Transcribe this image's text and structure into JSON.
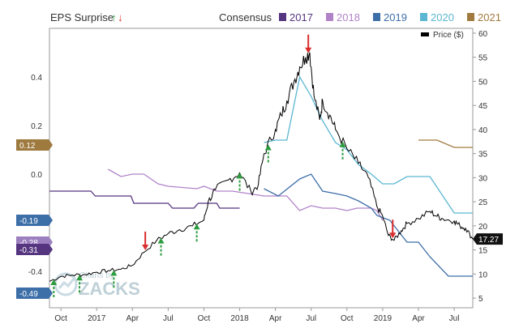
{
  "chart_data": {
    "type": "line",
    "header": {
      "eps_surprise_label": "EPS Surprise",
      "consensus_label": "Consensus",
      "price_label": "Price ($)",
      "up_arrow": "↑",
      "down_arrow": "↓"
    },
    "left_axis": {
      "min": -0.55,
      "max": 0.6,
      "ticks": [
        "0.4",
        "0.2",
        "0.0",
        "-0.2",
        "-0.4"
      ],
      "tick_values": [
        0.4,
        0.2,
        0.0,
        -0.2,
        -0.4
      ]
    },
    "right_axis": {
      "min": 3,
      "max": 61,
      "ticks": [
        "60",
        "55",
        "50",
        "45",
        "40",
        "35",
        "30",
        "25",
        "20",
        "15",
        "10",
        "5"
      ],
      "tick_values": [
        60,
        55,
        50,
        45,
        40,
        35,
        30,
        25,
        20,
        15,
        10,
        5
      ]
    },
    "x_axis": {
      "start": 2016.67,
      "end": 2019.63,
      "ticks": [
        {
          "label": "Oct",
          "t": 2016.75
        },
        {
          "label": "2017",
          "t": 2017.0
        },
        {
          "label": "Apr",
          "t": 2017.25
        },
        {
          "label": "Jul",
          "t": 2017.5
        },
        {
          "label": "Oct",
          "t": 2017.75
        },
        {
          "label": "2018",
          "t": 2018.0
        },
        {
          "label": "Apr",
          "t": 2018.25
        },
        {
          "label": "Jul",
          "t": 2018.5
        },
        {
          "label": "Oct",
          "t": 2018.75
        },
        {
          "label": "2019",
          "t": 2019.0
        },
        {
          "label": "Apr",
          "t": 2019.25
        },
        {
          "label": "Jul",
          "t": 2019.5
        }
      ]
    },
    "badges": [
      {
        "label": "0.12",
        "value": 0.12,
        "color": "#9e7a3f"
      },
      {
        "label": "-0.19",
        "value": -0.19,
        "color": "#3c6ea8"
      },
      {
        "label": "-0.28",
        "value": -0.28,
        "color": "#9c7fbf"
      },
      {
        "label": "-0.31",
        "value": -0.31,
        "color": "#55357f"
      },
      {
        "label": "-0.49",
        "value": -0.49,
        "color": "#3c6ea8"
      }
    ],
    "price_badge": {
      "label": "17.27",
      "value": 17.27
    },
    "legend": [
      {
        "name": "2017",
        "color": "#55357f"
      },
      {
        "name": "2018",
        "color": "#b083c9"
      },
      {
        "name": "2019",
        "color": "#3c6ea8"
      },
      {
        "name": "2020",
        "color": "#5ab6d2"
      },
      {
        "name": "2021",
        "color": "#a07a3e"
      }
    ],
    "series": [
      {
        "name": "2017",
        "color": "#55357f",
        "points": [
          [
            2016.67,
            -0.07
          ],
          [
            2016.96,
            -0.07
          ],
          [
            2016.99,
            -0.09
          ],
          [
            2017.24,
            -0.09
          ],
          [
            2017.26,
            -0.12
          ],
          [
            2017.5,
            -0.12
          ],
          [
            2017.53,
            -0.14
          ],
          [
            2017.68,
            -0.14
          ],
          [
            2017.71,
            -0.12
          ],
          [
            2017.84,
            -0.12
          ],
          [
            2017.86,
            -0.14
          ],
          [
            2018.0,
            -0.14
          ]
        ]
      },
      {
        "name": "2018",
        "color": "#b083c9",
        "points": [
          [
            2017.08,
            0.02
          ],
          [
            2017.17,
            -0.01
          ],
          [
            2017.25,
            0.0
          ],
          [
            2017.33,
            0.0
          ],
          [
            2017.43,
            -0.04
          ],
          [
            2017.5,
            -0.05
          ],
          [
            2017.7,
            -0.06
          ],
          [
            2017.75,
            -0.05
          ],
          [
            2017.84,
            -0.07
          ],
          [
            2017.95,
            -0.07
          ],
          [
            2018.17,
            -0.09
          ],
          [
            2018.33,
            -0.09
          ],
          [
            2018.42,
            -0.15
          ],
          [
            2018.5,
            -0.13
          ],
          [
            2018.58,
            -0.14
          ],
          [
            2018.67,
            -0.14
          ],
          [
            2018.75,
            -0.15
          ],
          [
            2018.82,
            -0.14
          ],
          [
            2018.92,
            -0.14
          ],
          [
            2018.96,
            -0.15
          ],
          [
            2019.0,
            -0.19
          ]
        ]
      },
      {
        "name": "2019",
        "color": "#3c6ea8",
        "points": [
          [
            2018.17,
            -0.06
          ],
          [
            2018.27,
            -0.09
          ],
          [
            2018.42,
            -0.02
          ],
          [
            2018.5,
            0.0
          ],
          [
            2018.58,
            -0.07
          ],
          [
            2018.67,
            -0.08
          ],
          [
            2018.75,
            -0.09
          ],
          [
            2018.83,
            -0.11
          ],
          [
            2018.92,
            -0.14
          ],
          [
            2018.96,
            -0.17
          ],
          [
            2019.05,
            -0.19
          ],
          [
            2019.17,
            -0.28
          ],
          [
            2019.25,
            -0.28
          ],
          [
            2019.33,
            -0.34
          ],
          [
            2019.46,
            -0.42
          ],
          [
            2019.63,
            -0.42
          ]
        ]
      },
      {
        "name": "2020",
        "color": "#5ab6d2",
        "points": [
          [
            2018.17,
            0.13
          ],
          [
            2018.25,
            0.14
          ],
          [
            2018.33,
            0.14
          ],
          [
            2018.42,
            0.4
          ],
          [
            2018.5,
            0.32
          ],
          [
            2018.58,
            0.22
          ],
          [
            2018.67,
            0.13
          ],
          [
            2018.75,
            0.1
          ],
          [
            2018.83,
            0.04
          ],
          [
            2018.92,
            0.0
          ],
          [
            2019.0,
            -0.04
          ],
          [
            2019.08,
            -0.04
          ],
          [
            2019.17,
            -0.01
          ],
          [
            2019.33,
            -0.01
          ],
          [
            2019.5,
            -0.16
          ],
          [
            2019.63,
            -0.16
          ]
        ]
      },
      {
        "name": "2021",
        "color": "#a07a3e",
        "points": [
          [
            2019.25,
            0.14
          ],
          [
            2019.38,
            0.14
          ],
          [
            2019.5,
            0.11
          ],
          [
            2019.63,
            0.11
          ]
        ]
      }
    ],
    "price": {
      "name": "Price ($)",
      "color": "#000000",
      "points": [
        [
          2016.67,
          8.5
        ],
        [
          2016.75,
          9.5
        ],
        [
          2016.83,
          9.8
        ],
        [
          2016.92,
          9.9
        ],
        [
          2017.0,
          10.4
        ],
        [
          2017.08,
          10.7
        ],
        [
          2017.17,
          11.0
        ],
        [
          2017.25,
          11.8
        ],
        [
          2017.33,
          14.5
        ],
        [
          2017.42,
          17.0
        ],
        [
          2017.5,
          18.4
        ],
        [
          2017.58,
          19.2
        ],
        [
          2017.67,
          20.0
        ],
        [
          2017.75,
          21.2
        ],
        [
          2017.78,
          25.0
        ],
        [
          2017.83,
          27.5
        ],
        [
          2017.92,
          29.5
        ],
        [
          2018.0,
          31.0
        ],
        [
          2018.08,
          27.0
        ],
        [
          2018.13,
          28.5
        ],
        [
          2018.17,
          35.0
        ],
        [
          2018.25,
          40.0
        ],
        [
          2018.29,
          43.0
        ],
        [
          2018.33,
          46.0
        ],
        [
          2018.38,
          50.0
        ],
        [
          2018.42,
          53.0
        ],
        [
          2018.46,
          55.0
        ],
        [
          2018.49,
          56.0
        ],
        [
          2018.52,
          47.0
        ],
        [
          2018.56,
          42.0
        ],
        [
          2018.58,
          46.0
        ],
        [
          2018.63,
          43.0
        ],
        [
          2018.67,
          40.0
        ],
        [
          2018.75,
          36.0
        ],
        [
          2018.83,
          33.0
        ],
        [
          2018.9,
          30.0
        ],
        [
          2018.96,
          24.0
        ],
        [
          2019.0,
          22.0
        ],
        [
          2019.04,
          18.0
        ],
        [
          2019.08,
          17.0
        ],
        [
          2019.13,
          19.0
        ],
        [
          2019.17,
          20.5
        ],
        [
          2019.25,
          21.5
        ],
        [
          2019.33,
          23.0
        ],
        [
          2019.38,
          22.0
        ],
        [
          2019.42,
          21.5
        ],
        [
          2019.5,
          21.0
        ],
        [
          2019.54,
          20.0
        ],
        [
          2019.58,
          19.5
        ],
        [
          2019.63,
          17.27
        ]
      ]
    },
    "surprise_markers": [
      {
        "t": 2016.7,
        "dir": "up"
      },
      {
        "t": 2016.88,
        "dir": "up"
      },
      {
        "t": 2017.12,
        "dir": "up"
      },
      {
        "t": 2017.34,
        "dir": "down"
      },
      {
        "t": 2017.45,
        "dir": "up"
      },
      {
        "t": 2017.7,
        "dir": "up"
      },
      {
        "t": 2018.0,
        "dir": "up"
      },
      {
        "t": 2018.2,
        "dir": "up"
      },
      {
        "t": 2018.48,
        "dir": "down"
      },
      {
        "t": 2018.72,
        "dir": "up"
      },
      {
        "t": 2019.07,
        "dir": "down"
      }
    ],
    "watermark": {
      "line1": "Charts by",
      "line2": "ZACKS"
    }
  }
}
